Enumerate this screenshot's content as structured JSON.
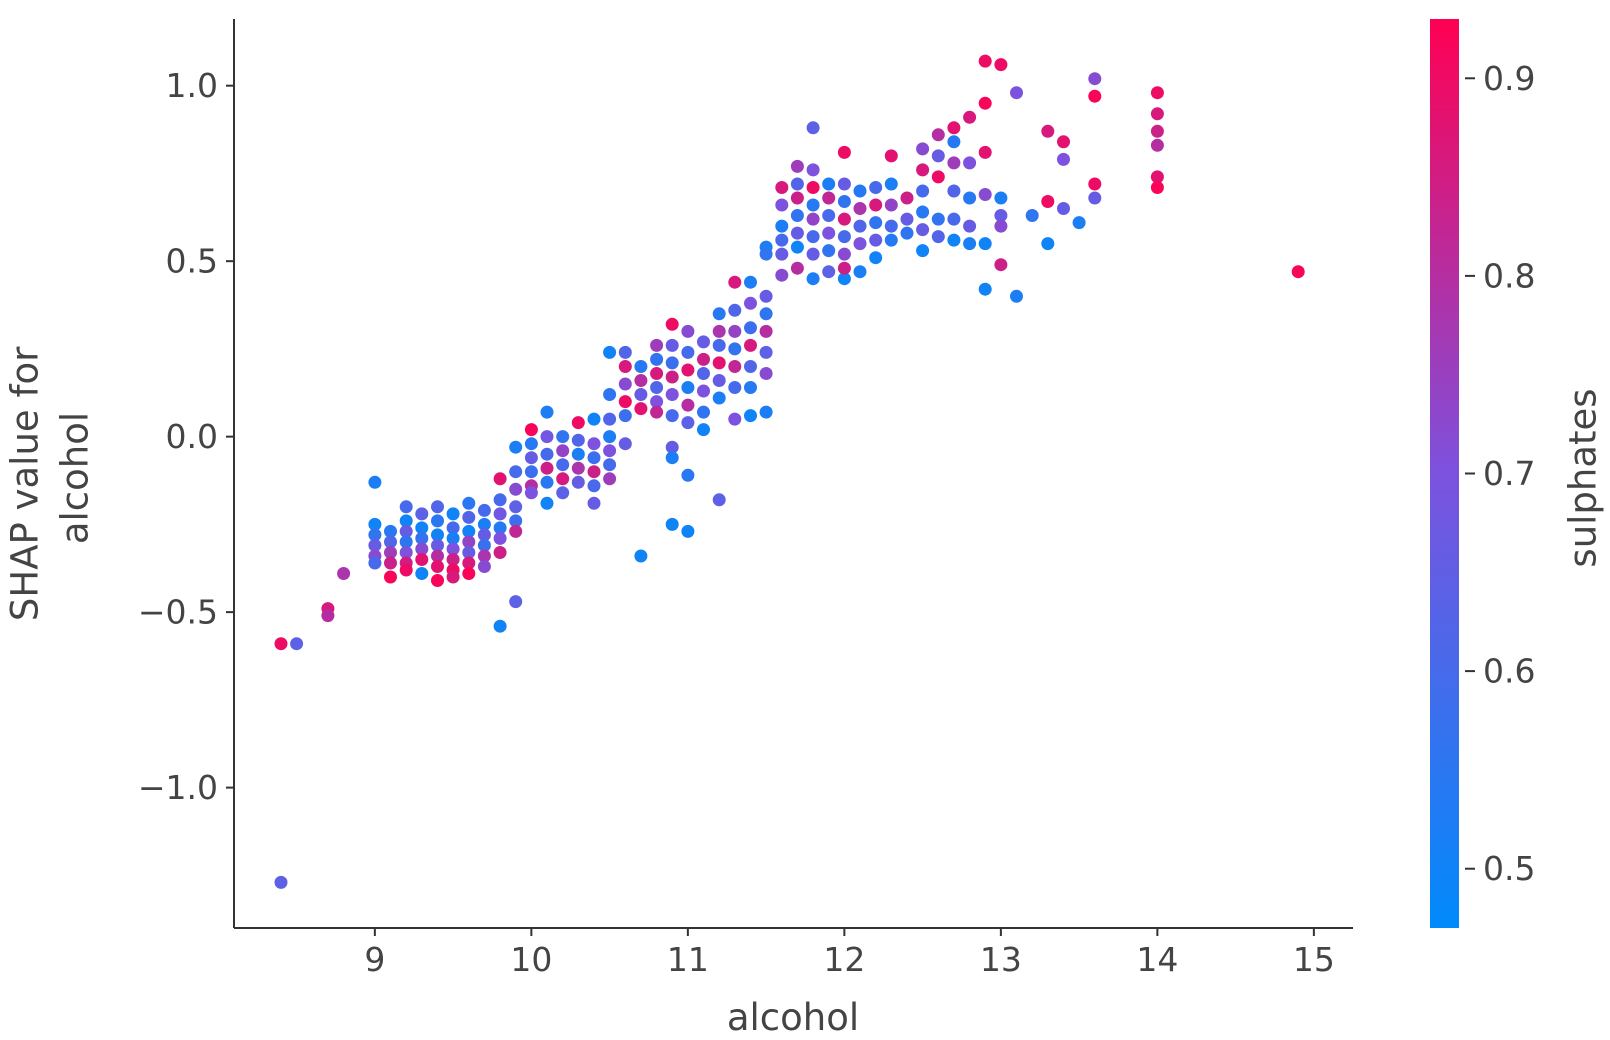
{
  "chart_data": {
    "type": "scatter",
    "title": "",
    "xlabel": "alcohol",
    "ylabel_lines": [
      "SHAP value for",
      "alcohol"
    ],
    "xlim": [
      8.1,
      15.25
    ],
    "ylim": [
      -1.4,
      1.19
    ],
    "x_ticks": [
      9,
      10,
      11,
      12,
      13,
      14,
      15
    ],
    "x_tick_labels": [
      "9",
      "10",
      "11",
      "12",
      "13",
      "14",
      "15"
    ],
    "y_ticks": [
      1.0,
      0.5,
      0.0,
      -0.5,
      -1.0
    ],
    "y_tick_labels": [
      "1.0",
      "0.5",
      "0.0",
      "−0.5",
      "−1.0"
    ],
    "colorbar": {
      "label": "sulphates",
      "range": [
        0.47,
        0.93
      ],
      "ticks": [
        0.9,
        0.8,
        0.7,
        0.6,
        0.5
      ],
      "tick_labels": [
        "0.9",
        "0.8",
        "0.7",
        "0.6",
        "0.5"
      ],
      "colors": [
        "#008afb",
        "#7c52de",
        "#ff0052"
      ]
    },
    "grid": false,
    "legend": "colorbar-right",
    "points": [
      [
        8.4,
        -1.27,
        0.64
      ],
      [
        8.4,
        -0.59,
        0.9
      ],
      [
        8.5,
        -0.59,
        0.64
      ],
      [
        8.7,
        -0.49,
        0.86
      ],
      [
        8.7,
        -0.51,
        0.8
      ],
      [
        8.8,
        -0.39,
        0.78
      ],
      [
        9.0,
        -0.13,
        0.52
      ],
      [
        9.0,
        -0.25,
        0.5
      ],
      [
        9.0,
        -0.28,
        0.56
      ],
      [
        9.0,
        -0.31,
        0.66
      ],
      [
        9.0,
        -0.34,
        0.72
      ],
      [
        9.0,
        -0.36,
        0.6
      ],
      [
        9.1,
        -0.27,
        0.54
      ],
      [
        9.1,
        -0.3,
        0.62
      ],
      [
        9.1,
        -0.33,
        0.76
      ],
      [
        9.1,
        -0.36,
        0.84
      ],
      [
        9.1,
        -0.4,
        0.92
      ],
      [
        9.2,
        -0.2,
        0.6
      ],
      [
        9.2,
        -0.24,
        0.5
      ],
      [
        9.2,
        -0.27,
        0.66
      ],
      [
        9.2,
        -0.3,
        0.55
      ],
      [
        9.2,
        -0.33,
        0.7
      ],
      [
        9.2,
        -0.36,
        0.85
      ],
      [
        9.2,
        -0.38,
        0.9
      ],
      [
        9.3,
        -0.22,
        0.64
      ],
      [
        9.3,
        -0.26,
        0.5
      ],
      [
        9.3,
        -0.29,
        0.57
      ],
      [
        9.3,
        -0.32,
        0.72
      ],
      [
        9.3,
        -0.35,
        0.88
      ],
      [
        9.3,
        -0.39,
        0.5
      ],
      [
        9.4,
        -0.2,
        0.62
      ],
      [
        9.4,
        -0.24,
        0.55
      ],
      [
        9.4,
        -0.28,
        0.5
      ],
      [
        9.4,
        -0.31,
        0.66
      ],
      [
        9.4,
        -0.34,
        0.8
      ],
      [
        9.4,
        -0.37,
        0.88
      ],
      [
        9.4,
        -0.41,
        0.92
      ],
      [
        9.5,
        -0.22,
        0.5
      ],
      [
        9.5,
        -0.26,
        0.6
      ],
      [
        9.5,
        -0.29,
        0.52
      ],
      [
        9.5,
        -0.32,
        0.7
      ],
      [
        9.5,
        -0.35,
        0.84
      ],
      [
        9.5,
        -0.38,
        0.9
      ],
      [
        9.5,
        -0.4,
        0.86
      ],
      [
        9.6,
        -0.19,
        0.55
      ],
      [
        9.6,
        -0.23,
        0.62
      ],
      [
        9.6,
        -0.27,
        0.5
      ],
      [
        9.6,
        -0.3,
        0.74
      ],
      [
        9.6,
        -0.33,
        0.66
      ],
      [
        9.6,
        -0.36,
        0.86
      ],
      [
        9.6,
        -0.39,
        0.92
      ],
      [
        9.7,
        -0.21,
        0.6
      ],
      [
        9.7,
        -0.25,
        0.52
      ],
      [
        9.7,
        -0.28,
        0.66
      ],
      [
        9.7,
        -0.31,
        0.58
      ],
      [
        9.7,
        -0.34,
        0.78
      ],
      [
        9.7,
        -0.37,
        0.72
      ],
      [
        9.8,
        -0.12,
        0.88
      ],
      [
        9.8,
        -0.18,
        0.6
      ],
      [
        9.8,
        -0.22,
        0.68
      ],
      [
        9.8,
        -0.26,
        0.54
      ],
      [
        9.8,
        -0.29,
        0.7
      ],
      [
        9.8,
        -0.33,
        0.84
      ],
      [
        9.8,
        -0.54,
        0.5
      ],
      [
        9.9,
        -0.03,
        0.52
      ],
      [
        9.9,
        -0.1,
        0.6
      ],
      [
        9.9,
        -0.15,
        0.72
      ],
      [
        9.9,
        -0.2,
        0.64
      ],
      [
        9.9,
        -0.24,
        0.58
      ],
      [
        9.9,
        -0.27,
        0.82
      ],
      [
        9.9,
        -0.47,
        0.64
      ],
      [
        10.0,
        0.02,
        0.92
      ],
      [
        10.0,
        -0.02,
        0.54
      ],
      [
        10.0,
        -0.06,
        0.66
      ],
      [
        10.0,
        -0.1,
        0.58
      ],
      [
        10.0,
        -0.14,
        0.8
      ],
      [
        10.0,
        -0.16,
        0.7
      ],
      [
        10.1,
        0.07,
        0.52
      ],
      [
        10.1,
        0.0,
        0.68
      ],
      [
        10.1,
        -0.05,
        0.6
      ],
      [
        10.1,
        -0.09,
        0.84
      ],
      [
        10.1,
        -0.13,
        0.54
      ],
      [
        10.1,
        -0.19,
        0.5
      ],
      [
        10.2,
        0.0,
        0.56
      ],
      [
        10.2,
        -0.04,
        0.74
      ],
      [
        10.2,
        -0.08,
        0.6
      ],
      [
        10.2,
        -0.12,
        0.86
      ],
      [
        10.2,
        -0.16,
        0.64
      ],
      [
        10.3,
        0.04,
        0.9
      ],
      [
        10.3,
        -0.01,
        0.62
      ],
      [
        10.3,
        -0.05,
        0.52
      ],
      [
        10.3,
        -0.09,
        0.78
      ],
      [
        10.3,
        -0.13,
        0.66
      ],
      [
        10.4,
        0.05,
        0.5
      ],
      [
        10.4,
        -0.02,
        0.7
      ],
      [
        10.4,
        -0.06,
        0.58
      ],
      [
        10.4,
        -0.1,
        0.84
      ],
      [
        10.4,
        -0.14,
        0.6
      ],
      [
        10.4,
        -0.19,
        0.66
      ],
      [
        10.5,
        0.24,
        0.5
      ],
      [
        10.5,
        0.12,
        0.56
      ],
      [
        10.5,
        0.05,
        0.62
      ],
      [
        10.5,
        0.0,
        0.52
      ],
      [
        10.5,
        -0.04,
        0.7
      ],
      [
        10.5,
        -0.08,
        0.6
      ],
      [
        10.5,
        -0.12,
        0.76
      ],
      [
        10.6,
        0.24,
        0.62
      ],
      [
        10.6,
        0.2,
        0.86
      ],
      [
        10.6,
        0.15,
        0.72
      ],
      [
        10.6,
        0.1,
        0.9
      ],
      [
        10.6,
        0.06,
        0.58
      ],
      [
        10.6,
        -0.02,
        0.66
      ],
      [
        10.7,
        0.2,
        0.54
      ],
      [
        10.7,
        0.16,
        0.8
      ],
      [
        10.7,
        0.12,
        0.66
      ],
      [
        10.7,
        0.08,
        0.88
      ],
      [
        10.7,
        -0.34,
        0.5
      ],
      [
        10.8,
        0.26,
        0.76
      ],
      [
        10.8,
        0.22,
        0.56
      ],
      [
        10.8,
        0.18,
        0.86
      ],
      [
        10.8,
        0.14,
        0.62
      ],
      [
        10.8,
        0.1,
        0.7
      ],
      [
        10.8,
        0.07,
        0.82
      ],
      [
        10.9,
        0.32,
        0.9
      ],
      [
        10.9,
        0.26,
        0.66
      ],
      [
        10.9,
        0.21,
        0.58
      ],
      [
        10.9,
        0.17,
        0.84
      ],
      [
        10.9,
        0.12,
        0.7
      ],
      [
        10.9,
        0.06,
        0.6
      ],
      [
        10.9,
        -0.03,
        0.66
      ],
      [
        10.9,
        -0.06,
        0.52
      ],
      [
        10.9,
        -0.25,
        0.5
      ],
      [
        11.0,
        0.3,
        0.72
      ],
      [
        11.0,
        0.24,
        0.6
      ],
      [
        11.0,
        0.19,
        0.88
      ],
      [
        11.0,
        0.14,
        0.52
      ],
      [
        11.0,
        0.09,
        0.8
      ],
      [
        11.0,
        0.04,
        0.64
      ],
      [
        11.0,
        -0.11,
        0.54
      ],
      [
        11.0,
        -0.27,
        0.5
      ],
      [
        11.1,
        0.27,
        0.66
      ],
      [
        11.1,
        0.22,
        0.84
      ],
      [
        11.1,
        0.18,
        0.62
      ],
      [
        11.1,
        0.13,
        0.7
      ],
      [
        11.1,
        0.07,
        0.56
      ],
      [
        11.1,
        0.02,
        0.5
      ],
      [
        11.2,
        0.35,
        0.54
      ],
      [
        11.2,
        0.3,
        0.78
      ],
      [
        11.2,
        0.26,
        0.6
      ],
      [
        11.2,
        0.21,
        0.88
      ],
      [
        11.2,
        0.16,
        0.66
      ],
      [
        11.2,
        0.11,
        0.52
      ],
      [
        11.2,
        -0.18,
        0.64
      ],
      [
        11.3,
        0.44,
        0.86
      ],
      [
        11.3,
        0.36,
        0.62
      ],
      [
        11.3,
        0.3,
        0.74
      ],
      [
        11.3,
        0.25,
        0.56
      ],
      [
        11.3,
        0.2,
        0.82
      ],
      [
        11.3,
        0.14,
        0.6
      ],
      [
        11.3,
        0.05,
        0.7
      ],
      [
        11.4,
        0.44,
        0.52
      ],
      [
        11.4,
        0.38,
        0.7
      ],
      [
        11.4,
        0.31,
        0.58
      ],
      [
        11.4,
        0.26,
        0.86
      ],
      [
        11.4,
        0.2,
        0.62
      ],
      [
        11.4,
        0.14,
        0.54
      ],
      [
        11.4,
        0.06,
        0.5
      ],
      [
        11.5,
        0.4,
        0.66
      ],
      [
        11.5,
        0.35,
        0.56
      ],
      [
        11.5,
        0.3,
        0.8
      ],
      [
        11.5,
        0.24,
        0.64
      ],
      [
        11.5,
        0.18,
        0.72
      ],
      [
        11.5,
        0.07,
        0.52
      ],
      [
        11.5,
        0.54,
        0.52
      ],
      [
        11.5,
        0.52,
        0.56
      ],
      [
        11.6,
        0.71,
        0.86
      ],
      [
        11.6,
        0.66,
        0.7
      ],
      [
        11.6,
        0.6,
        0.52
      ],
      [
        11.6,
        0.56,
        0.6
      ],
      [
        11.6,
        0.52,
        0.66
      ],
      [
        11.6,
        0.46,
        0.72
      ],
      [
        11.7,
        0.77,
        0.76
      ],
      [
        11.7,
        0.72,
        0.62
      ],
      [
        11.7,
        0.68,
        0.84
      ],
      [
        11.7,
        0.63,
        0.56
      ],
      [
        11.7,
        0.58,
        0.66
      ],
      [
        11.7,
        0.54,
        0.5
      ],
      [
        11.7,
        0.48,
        0.8
      ],
      [
        11.8,
        0.88,
        0.64
      ],
      [
        11.8,
        0.76,
        0.7
      ],
      [
        11.8,
        0.71,
        0.9
      ],
      [
        11.8,
        0.66,
        0.54
      ],
      [
        11.8,
        0.62,
        0.74
      ],
      [
        11.8,
        0.57,
        0.6
      ],
      [
        11.8,
        0.52,
        0.66
      ],
      [
        11.8,
        0.45,
        0.52
      ],
      [
        11.9,
        0.72,
        0.52
      ],
      [
        11.9,
        0.68,
        0.82
      ],
      [
        11.9,
        0.63,
        0.6
      ],
      [
        11.9,
        0.58,
        0.7
      ],
      [
        11.9,
        0.53,
        0.56
      ],
      [
        11.9,
        0.47,
        0.64
      ],
      [
        12.0,
        0.81,
        0.9
      ],
      [
        12.0,
        0.72,
        0.66
      ],
      [
        12.0,
        0.67,
        0.56
      ],
      [
        12.0,
        0.62,
        0.86
      ],
      [
        12.0,
        0.57,
        0.6
      ],
      [
        12.0,
        0.52,
        0.72
      ],
      [
        12.0,
        0.45,
        0.5
      ],
      [
        12.0,
        0.48,
        0.84
      ],
      [
        12.1,
        0.7,
        0.54
      ],
      [
        12.1,
        0.65,
        0.78
      ],
      [
        12.1,
        0.6,
        0.62
      ],
      [
        12.1,
        0.55,
        0.7
      ],
      [
        12.1,
        0.47,
        0.52
      ],
      [
        12.2,
        0.71,
        0.6
      ],
      [
        12.2,
        0.66,
        0.86
      ],
      [
        12.2,
        0.61,
        0.56
      ],
      [
        12.2,
        0.56,
        0.66
      ],
      [
        12.2,
        0.51,
        0.5
      ],
      [
        12.3,
        0.8,
        0.88
      ],
      [
        12.3,
        0.72,
        0.52
      ],
      [
        12.3,
        0.66,
        0.74
      ],
      [
        12.3,
        0.6,
        0.6
      ],
      [
        12.3,
        0.56,
        0.54
      ],
      [
        12.4,
        0.68,
        0.84
      ],
      [
        12.4,
        0.62,
        0.66
      ],
      [
        12.4,
        0.58,
        0.56
      ],
      [
        12.5,
        0.82,
        0.72
      ],
      [
        12.5,
        0.76,
        0.86
      ],
      [
        12.5,
        0.7,
        0.6
      ],
      [
        12.5,
        0.64,
        0.54
      ],
      [
        12.5,
        0.59,
        0.66
      ],
      [
        12.5,
        0.53,
        0.5
      ],
      [
        12.6,
        0.86,
        0.8
      ],
      [
        12.6,
        0.8,
        0.66
      ],
      [
        12.6,
        0.74,
        0.9
      ],
      [
        12.6,
        0.62,
        0.56
      ],
      [
        12.6,
        0.57,
        0.62
      ],
      [
        12.7,
        0.88,
        0.88
      ],
      [
        12.7,
        0.84,
        0.54
      ],
      [
        12.7,
        0.78,
        0.76
      ],
      [
        12.7,
        0.7,
        0.62
      ],
      [
        12.7,
        0.62,
        0.6
      ],
      [
        12.7,
        0.56,
        0.5
      ],
      [
        12.8,
        0.91,
        0.86
      ],
      [
        12.8,
        0.78,
        0.7
      ],
      [
        12.8,
        0.68,
        0.54
      ],
      [
        12.8,
        0.6,
        0.66
      ],
      [
        12.8,
        0.55,
        0.52
      ],
      [
        12.9,
        1.07,
        0.9
      ],
      [
        12.9,
        0.95,
        0.92
      ],
      [
        12.9,
        0.81,
        0.88
      ],
      [
        12.9,
        0.69,
        0.72
      ],
      [
        12.9,
        0.55,
        0.5
      ],
      [
        12.9,
        0.42,
        0.5
      ],
      [
        13.0,
        1.06,
        0.9
      ],
      [
        13.0,
        0.68,
        0.52
      ],
      [
        13.0,
        0.63,
        0.66
      ],
      [
        13.0,
        0.6,
        0.72
      ],
      [
        13.0,
        0.49,
        0.84
      ],
      [
        13.1,
        0.98,
        0.7
      ],
      [
        13.1,
        0.4,
        0.52
      ],
      [
        13.2,
        0.63,
        0.56
      ],
      [
        13.3,
        0.87,
        0.86
      ],
      [
        13.3,
        0.67,
        0.9
      ],
      [
        13.3,
        0.55,
        0.5
      ],
      [
        13.4,
        0.84,
        0.88
      ],
      [
        13.4,
        0.79,
        0.7
      ],
      [
        13.4,
        0.65,
        0.66
      ],
      [
        13.5,
        0.61,
        0.52
      ],
      [
        13.6,
        1.02,
        0.72
      ],
      [
        13.6,
        0.97,
        0.92
      ],
      [
        13.6,
        0.72,
        0.9
      ],
      [
        13.6,
        0.68,
        0.66
      ],
      [
        14.0,
        0.98,
        0.9
      ],
      [
        14.0,
        0.92,
        0.86
      ],
      [
        14.0,
        0.87,
        0.84
      ],
      [
        14.0,
        0.83,
        0.8
      ],
      [
        14.0,
        0.74,
        0.88
      ],
      [
        14.0,
        0.71,
        0.92
      ],
      [
        14.9,
        0.47,
        0.92
      ]
    ]
  }
}
